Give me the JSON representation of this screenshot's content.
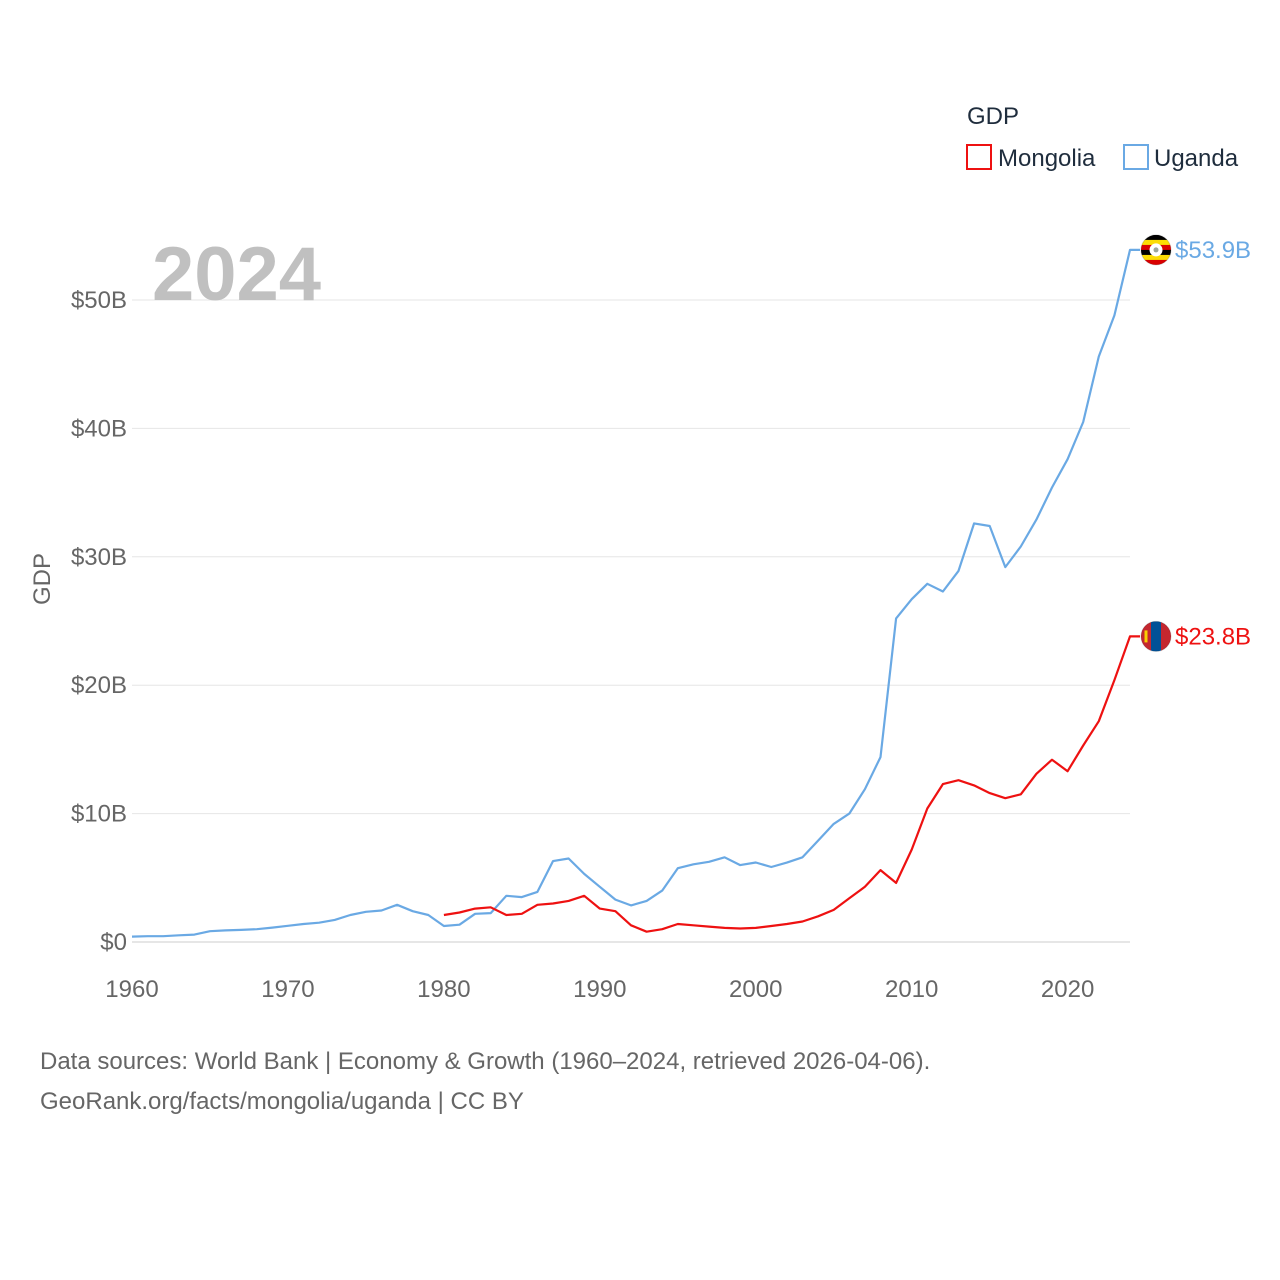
{
  "colors": {
    "mongolia": "#ee1111",
    "uganda": "#6aa9e4",
    "axis_text": "#666666",
    "grid": "#e6e6e6",
    "year_watermark": "#c0c0c0",
    "legend_title": "#1f2d3d"
  },
  "chart_data": {
    "type": "line",
    "title": "",
    "ylabel": "GDP",
    "xlabel": "",
    "year_display": "2024",
    "xlim": [
      1960,
      2024
    ],
    "ylim": [
      0,
      55
    ],
    "x_ticks": [
      "1960",
      "1970",
      "1980",
      "1990",
      "2000",
      "2010",
      "2020"
    ],
    "x_tick_values": [
      1960,
      1970,
      1980,
      1990,
      2000,
      2010,
      2020
    ],
    "y_ticks": [
      "$0",
      "$10B",
      "$20B",
      "$30B",
      "$40B",
      "$50B"
    ],
    "y_tick_values": [
      0,
      10,
      20,
      30,
      40,
      50
    ],
    "legend": {
      "title": "GDP",
      "position": "top-right"
    },
    "series": [
      {
        "name": "Mongolia",
        "color_key": "mongolia",
        "flag_icon": "mongolia-flag-icon",
        "end_label": "$23.8B",
        "x": [
          1980,
          1981,
          1982,
          1983,
          1984,
          1985,
          1986,
          1987,
          1988,
          1989,
          1990,
          1991,
          1992,
          1993,
          1994,
          1995,
          1996,
          1997,
          1998,
          1999,
          2000,
          2001,
          2002,
          2003,
          2004,
          2005,
          2006,
          2007,
          2008,
          2009,
          2010,
          2011,
          2012,
          2013,
          2014,
          2015,
          2016,
          2017,
          2018,
          2019,
          2020,
          2021,
          2022,
          2023,
          2024
        ],
        "values": [
          2.1,
          2.3,
          2.6,
          2.7,
          2.1,
          2.2,
          2.9,
          3.0,
          3.2,
          3.6,
          2.6,
          2.4,
          1.3,
          0.8,
          1.0,
          1.4,
          1.3,
          1.2,
          1.1,
          1.05,
          1.1,
          1.25,
          1.4,
          1.6,
          2.0,
          2.5,
          3.4,
          4.3,
          5.6,
          4.6,
          7.2,
          10.4,
          12.3,
          12.6,
          12.2,
          11.6,
          11.2,
          11.5,
          13.1,
          14.2,
          13.3,
          15.3,
          17.2,
          20.4,
          23.8
        ]
      },
      {
        "name": "Uganda",
        "color_key": "uganda",
        "flag_icon": "uganda-flag-icon",
        "end_label": "$53.9B",
        "x": [
          1960,
          1961,
          1962,
          1963,
          1964,
          1965,
          1966,
          1967,
          1968,
          1969,
          1970,
          1971,
          1972,
          1973,
          1974,
          1975,
          1976,
          1977,
          1978,
          1979,
          1980,
          1981,
          1982,
          1983,
          1984,
          1985,
          1986,
          1987,
          1988,
          1989,
          1990,
          1991,
          1992,
          1993,
          1994,
          1995,
          1996,
          1997,
          1998,
          1999,
          2000,
          2001,
          2002,
          2003,
          2004,
          2005,
          2006,
          2007,
          2008,
          2009,
          2010,
          2011,
          2012,
          2013,
          2014,
          2015,
          2016,
          2017,
          2018,
          2019,
          2020,
          2021,
          2022,
          2023,
          2024
        ],
        "values": [
          0.42,
          0.45,
          0.45,
          0.52,
          0.58,
          0.84,
          0.9,
          0.94,
          1.0,
          1.12,
          1.26,
          1.4,
          1.5,
          1.72,
          2.1,
          2.35,
          2.45,
          2.9,
          2.4,
          2.1,
          1.25,
          1.35,
          2.2,
          2.25,
          3.6,
          3.5,
          3.9,
          6.3,
          6.5,
          5.3,
          4.3,
          3.3,
          2.85,
          3.2,
          4.0,
          5.75,
          6.05,
          6.25,
          6.6,
          5.99,
          6.19,
          5.84,
          6.18,
          6.6,
          7.9,
          9.2,
          10.0,
          11.9,
          14.4,
          25.2,
          26.7,
          27.9,
          27.3,
          28.9,
          32.6,
          32.4,
          29.2,
          30.8,
          32.9,
          35.4,
          37.6,
          40.5,
          45.6,
          48.8,
          53.9
        ]
      }
    ]
  },
  "footer": {
    "line1": "Data sources: World Bank | Economy & Growth (1960–2024, retrieved 2026-04-06).",
    "line2": "GeoRank.org/facts/mongolia/uganda | CC BY"
  }
}
